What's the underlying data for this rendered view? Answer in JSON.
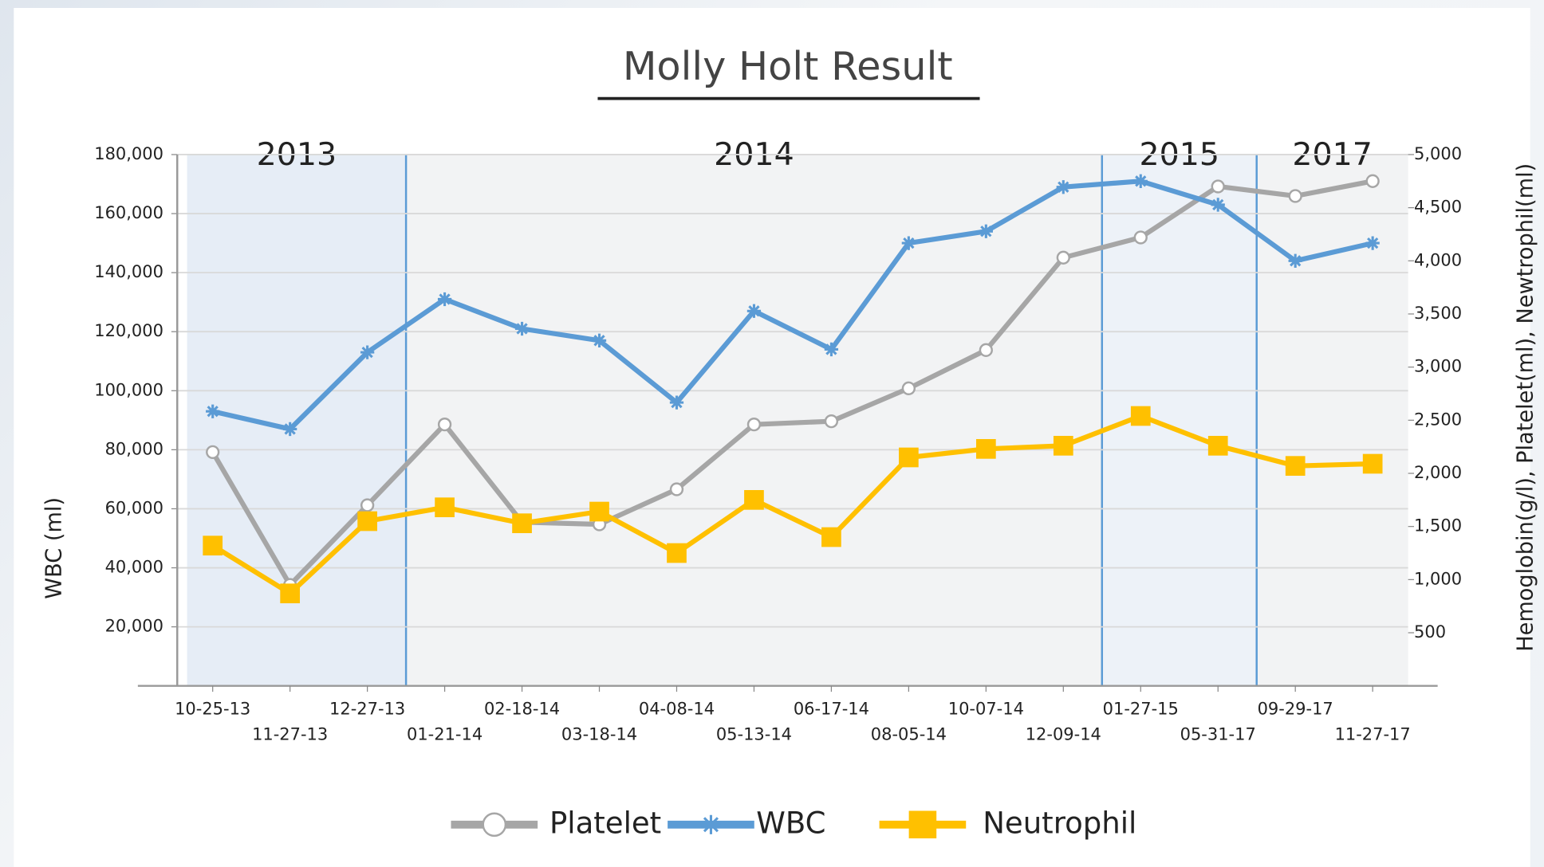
{
  "chart_data": {
    "type": "line",
    "title": "Molly Holt  Result",
    "y_label": "WBC (ml)",
    "y2_label": "Hemoglobin(g/l), Platelet(ml), Newtrophil(ml)",
    "categories": [
      "10-25-13",
      "11-27-13",
      "12-27-13",
      "01-21-14",
      "02-18-14",
      "03-18-14",
      "04-08-14",
      "05-13-14",
      "06-17-14",
      "08-05-14",
      "10-07-14",
      "12-09-14",
      "01-27-15",
      "05-31-17",
      "09-29-17",
      "11-27-17"
    ],
    "series": [
      {
        "name": "Platelet",
        "color": "#a6a6a6",
        "marker": "circle",
        "axis": "y2",
        "values": [
          2200,
          950,
          1700,
          2460,
          1540,
          1520,
          1850,
          2460,
          2490,
          2800,
          3160,
          4030,
          4220,
          4700,
          4610,
          4750
        ]
      },
      {
        "name": "WBC",
        "color": "#5b9bd5",
        "marker": "asterisk",
        "axis": "y",
        "values": [
          93000,
          87000,
          113000,
          131000,
          121000,
          117000,
          96000,
          127000,
          114000,
          150000,
          154000,
          169000,
          171000,
          163000,
          144000,
          150000
        ]
      },
      {
        "name": "Neutrophil",
        "color": "#ffc000",
        "marker": "square",
        "axis": "y2",
        "values": [
          1320,
          870,
          1550,
          1680,
          1530,
          1640,
          1250,
          1750,
          1400,
          2150,
          2230,
          2260,
          2540,
          2260,
          2070,
          2090
        ]
      }
    ],
    "periods": [
      {
        "label": "2013",
        "first": "10-25-13",
        "last": "12-27-13",
        "color": "#e6edf6"
      },
      {
        "label": "2014",
        "first": "01-21-14",
        "last": "12-09-14",
        "color": "#f2f3f4"
      },
      {
        "label": "2015",
        "first": "01-27-15",
        "last": "05-31-17",
        "color": "#edf2f8"
      },
      {
        "label": "2017",
        "first": "09-29-17",
        "last": "11-27-17",
        "color": "#f2f3f4"
      }
    ],
    "ylim": [
      0,
      180000
    ],
    "yticks": [
      {
        "value": 20000,
        "label": "20,000"
      },
      {
        "value": 40000,
        "label": "40,000"
      },
      {
        "value": 60000,
        "label": "60,000"
      },
      {
        "value": 80000,
        "label": "80,000"
      },
      {
        "value": 100000,
        "label": "100,000"
      },
      {
        "value": 120000,
        "label": "120,000"
      },
      {
        "value": 140000,
        "label": "140,000"
      },
      {
        "value": 160000,
        "label": "160,000"
      },
      {
        "value": 180000,
        "label": "180,000"
      }
    ],
    "y2lim": [
      0,
      5000
    ],
    "y2ticks": [
      500,
      {
        "value": 1000,
        "label": "1,000"
      },
      {
        "value": 1500,
        "label": "1,500"
      },
      {
        "value": 2000,
        "label": "2,000"
      },
      {
        "value": 2500,
        "label": "2,500"
      },
      {
        "value": 3000,
        "label": "3,000"
      },
      {
        "value": 3500,
        "label": "3,500"
      },
      {
        "value": 4000,
        "label": "4,000"
      },
      {
        "value": 4500,
        "label": "4,500"
      },
      {
        "value": 5000,
        "label": "5,000"
      }
    ],
    "grid": true,
    "legend": "bottom"
  }
}
